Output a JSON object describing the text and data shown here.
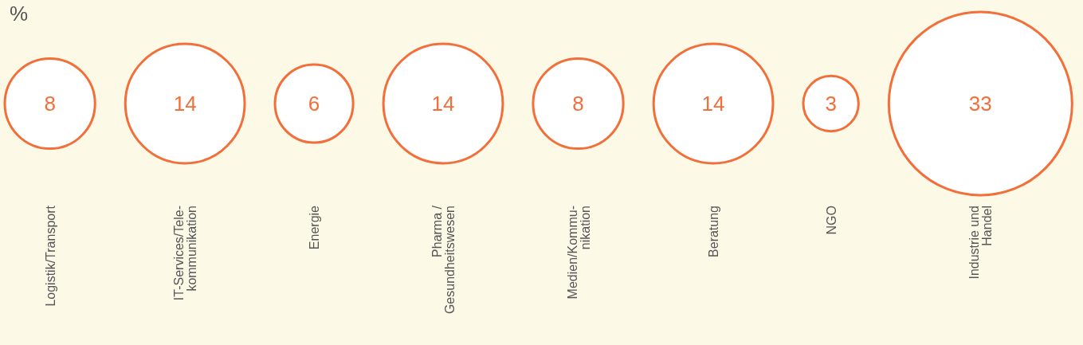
{
  "chart_data": {
    "type": "other",
    "ylabel": "%",
    "categories": [
      "Logistik/Transport",
      "IT-Services/Tele-\nkommunikation",
      "Energie",
      "Pharma /\nGesundheitswesen",
      "Medien/Kommu-\nnikation",
      "Beratung",
      "NGO",
      "Industrie und\nHandel"
    ],
    "values": [
      8,
      14,
      6,
      14,
      8,
      14,
      3,
      33
    ],
    "color": "#f26f3a",
    "data_labels": true
  }
}
